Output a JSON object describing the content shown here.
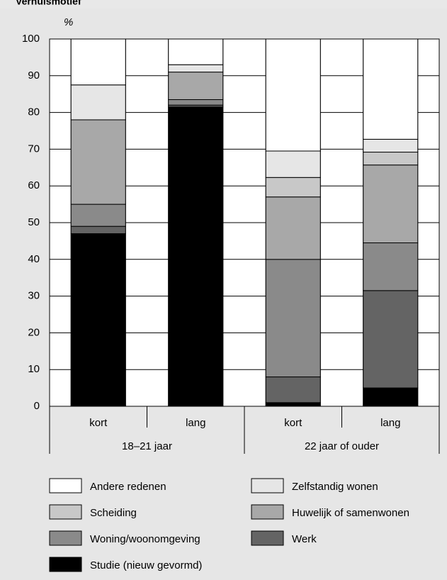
{
  "chart_data": {
    "type": "stacked_bar",
    "title": "Verhuismotief",
    "ylabel": "%",
    "categories": [
      "kort",
      "lang",
      "kort",
      "lang"
    ],
    "groups": [
      "18–21 jaar",
      "22 jaar of ouder"
    ],
    "ylim": [
      0,
      100
    ],
    "yticks": [
      0,
      10,
      20,
      30,
      40,
      50,
      60,
      70,
      80,
      90,
      100
    ],
    "grid": true,
    "series": [
      {
        "name": "Studie (nieuw gevormd)",
        "color": "#000000",
        "values": [
          47,
          81.5,
          1,
          5
        ]
      },
      {
        "name": "Werk",
        "color": "#646464",
        "values": [
          2,
          0.5,
          7,
          26.5
        ]
      },
      {
        "name": "Woning/woonomgeving",
        "color": "#8a8a8a",
        "values": [
          6,
          1.5,
          32,
          13
        ]
      },
      {
        "name": "Huwelijk of samenwonen",
        "color": "#a8a8a8",
        "values": [
          23,
          7.5,
          17,
          21.2
        ]
      },
      {
        "name": "Scheiding",
        "color": "#c8c8c8",
        "values": [
          0,
          0,
          5.3,
          3.5
        ]
      },
      {
        "name": "Zelfstandig wonen",
        "color": "#e6e6e6",
        "values": [
          9.5,
          2,
          7.2,
          3.5
        ]
      },
      {
        "name": "Andere redenen",
        "color": "#ffffff",
        "values": [
          12.5,
          7,
          30.5,
          27.3
        ]
      }
    ]
  }
}
